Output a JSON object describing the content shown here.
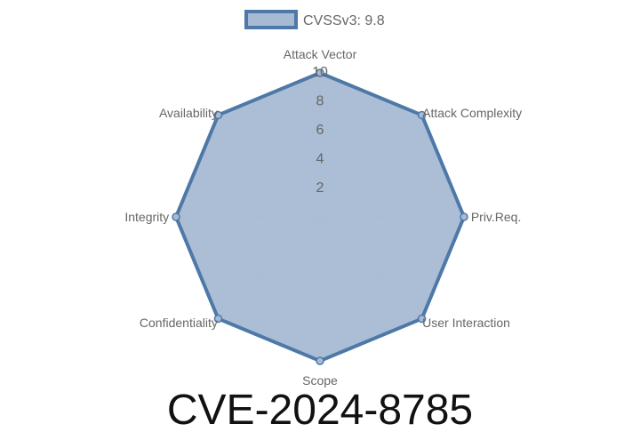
{
  "chart_data": {
    "type": "radar",
    "categories": [
      "Attack Vector",
      "Attack Complexity",
      "Priv.Req.",
      "User Interaction",
      "Scope",
      "Confidentiality",
      "Integrity",
      "Availability"
    ],
    "series": [
      {
        "name": "CVSSv3: 9.8",
        "values": [
          10,
          10,
          10,
          10,
          10,
          10,
          10,
          10
        ]
      }
    ],
    "rlim": [
      0,
      10
    ],
    "ticks": [
      "2",
      "4",
      "6",
      "8",
      "10"
    ],
    "legend": "top",
    "grid": true,
    "colors": {
      "stroke": "#4e79a7",
      "fill": "#a7bad4",
      "grid": "#d0d0d0"
    }
  },
  "title": "CVE-2024-8785"
}
